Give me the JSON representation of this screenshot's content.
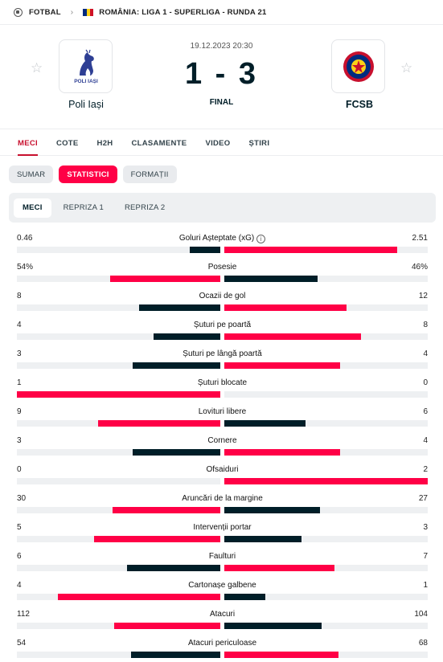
{
  "breadcrumb": {
    "sport": "FOTBAL",
    "competition": "ROMÂNIA: LIGA 1 - SUPERLIGA - RUNDA 21"
  },
  "colors": {
    "accent": "#ff0046",
    "dark": "#001e28",
    "track": "#eef0f2",
    "flag": [
      "#002b7f",
      "#fcd116",
      "#ce1126"
    ]
  },
  "match": {
    "datetime": "19.12.2023 20:30",
    "score": "1 - 3",
    "status": "FINAL",
    "home": {
      "name": "Poli Iași",
      "logo_text": "POLI IAȘI"
    },
    "away": {
      "name": "FCSB"
    }
  },
  "tabs": [
    "MECI",
    "COTE",
    "H2H",
    "CLASAMENTE",
    "VIDEO",
    "ȘTIRI"
  ],
  "subtabs": [
    "SUMAR",
    "STATISTICI",
    "FORMAȚII"
  ],
  "periods": [
    "MECI",
    "REPRIZA 1",
    "REPRIZA 2"
  ],
  "stats": [
    {
      "label": "Goluri Așteptate (xG)",
      "home": "0.46",
      "away": "2.51",
      "home_ratio": 0.15,
      "away_ratio": 0.85,
      "winner": "away",
      "info": true
    },
    {
      "label": "Posesie",
      "home": "54%",
      "away": "46%",
      "home_ratio": 0.54,
      "away_ratio": 0.46,
      "winner": "home"
    },
    {
      "label": "Ocazii de gol",
      "home": "8",
      "away": "12",
      "home_ratio": 0.4,
      "away_ratio": 0.6,
      "winner": "away"
    },
    {
      "label": "Șuturi pe poartă",
      "home": "4",
      "away": "8",
      "home_ratio": 0.33,
      "away_ratio": 0.67,
      "winner": "away"
    },
    {
      "label": "Șuturi pe lângă poartă",
      "home": "3",
      "away": "4",
      "home_ratio": 0.43,
      "away_ratio": 0.57,
      "winner": "away"
    },
    {
      "label": "Șuturi blocate",
      "home": "1",
      "away": "0",
      "home_ratio": 1.0,
      "away_ratio": 0.0,
      "winner": "home"
    },
    {
      "label": "Lovituri libere",
      "home": "9",
      "away": "6",
      "home_ratio": 0.6,
      "away_ratio": 0.4,
      "winner": "home"
    },
    {
      "label": "Cornere",
      "home": "3",
      "away": "4",
      "home_ratio": 0.43,
      "away_ratio": 0.57,
      "winner": "away"
    },
    {
      "label": "Ofsaiduri",
      "home": "0",
      "away": "2",
      "home_ratio": 0.0,
      "away_ratio": 1.0,
      "winner": "away"
    },
    {
      "label": "Aruncări de la margine",
      "home": "30",
      "away": "27",
      "home_ratio": 0.53,
      "away_ratio": 0.47,
      "winner": "home"
    },
    {
      "label": "Intervenții portar",
      "home": "5",
      "away": "3",
      "home_ratio": 0.62,
      "away_ratio": 0.38,
      "winner": "home"
    },
    {
      "label": "Faulturi",
      "home": "6",
      "away": "7",
      "home_ratio": 0.46,
      "away_ratio": 0.54,
      "winner": "away"
    },
    {
      "label": "Cartonașe galbene",
      "home": "4",
      "away": "1",
      "home_ratio": 0.8,
      "away_ratio": 0.2,
      "winner": "home"
    },
    {
      "label": "Atacuri",
      "home": "112",
      "away": "104",
      "home_ratio": 0.52,
      "away_ratio": 0.48,
      "winner": "home"
    },
    {
      "label": "Atacuri periculoase",
      "home": "54",
      "away": "68",
      "home_ratio": 0.44,
      "away_ratio": 0.56,
      "winner": "away"
    }
  ]
}
